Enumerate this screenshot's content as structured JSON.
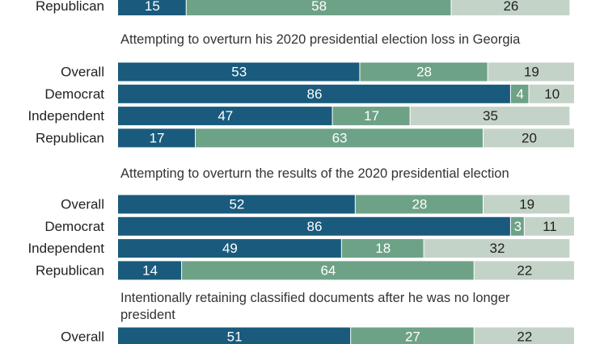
{
  "colors": {
    "seg1": "#1a5b7d",
    "seg2": "#6ea287",
    "seg3": "#c4d3c8",
    "text_dark": "#222222",
    "text_light": "#ffffff"
  },
  "chart_data": {
    "type": "bar",
    "stacked": true,
    "orientation": "horizontal",
    "grid": false,
    "legend": "none",
    "xlim": [
      0,
      100
    ],
    "panels": [
      {
        "title": "",
        "rows": [
          {
            "label": "Republican",
            "values": [
              15,
              58,
              26
            ]
          }
        ]
      },
      {
        "title": "Attempting to overturn his 2020 presidential election loss in Georgia",
        "rows": [
          {
            "label": "Overall",
            "values": [
              53,
              28,
              19
            ]
          },
          {
            "label": "Democrat",
            "values": [
              86,
              4,
              10
            ]
          },
          {
            "label": "Independent",
            "values": [
              47,
              17,
              35
            ]
          },
          {
            "label": "Republican",
            "values": [
              17,
              63,
              20
            ]
          }
        ]
      },
      {
        "title": "Attempting to overturn the results of the 2020 presidential election",
        "rows": [
          {
            "label": "Overall",
            "values": [
              52,
              28,
              19
            ]
          },
          {
            "label": "Democrat",
            "values": [
              86,
              3,
              11
            ]
          },
          {
            "label": "Independent",
            "values": [
              49,
              18,
              32
            ]
          },
          {
            "label": "Republican",
            "values": [
              14,
              64,
              22
            ]
          }
        ]
      },
      {
        "title": "Intentionally retaining classified documents after he was no longer president",
        "title_lines": [
          "Intentionally retaining classified documents after he was no longer",
          "president"
        ],
        "rows": [
          {
            "label": "Overall",
            "values": [
              51,
              27,
              22
            ]
          }
        ]
      }
    ]
  }
}
